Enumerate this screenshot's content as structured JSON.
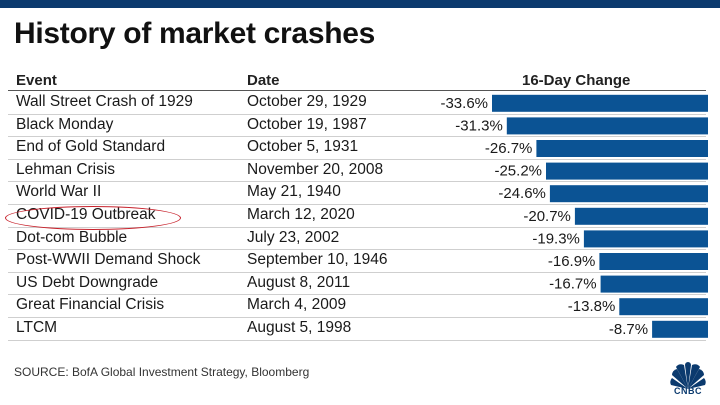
{
  "title": "History of market crashes",
  "headers": {
    "event": "Event",
    "date": "Date",
    "change": "16-Day Change"
  },
  "source": "SOURCE: BofA Global Investment Strategy, Bloomberg",
  "logo_text": "CNBC",
  "colors": {
    "bar": "#0b5394",
    "highlight": "#c7212b",
    "top_bar": "#0b3a6e"
  },
  "chart_data": {
    "type": "bar",
    "orientation": "horizontal",
    "title": "History of market crashes",
    "value_label": "16-Day Change",
    "unit": "%",
    "categories": [
      "Wall Street Crash of 1929",
      "Black Monday",
      "End of Gold Standard",
      "Lehman Crisis",
      "World War II",
      "COVID-19 Outbreak",
      "Dot-com Bubble",
      "Post-WWII Demand Shock",
      "US Debt Downgrade",
      "Great Financial Crisis",
      "LTCM"
    ],
    "dates": [
      "October 29, 1929",
      "October 19, 1987",
      "October 5, 1931",
      "November 20, 2008",
      "May 21, 1940",
      "March 12, 2020",
      "July 23, 2002",
      "September 10, 1946",
      "August 8, 2011",
      "March 4, 2009",
      "August 5, 1998"
    ],
    "values": [
      -33.6,
      -31.3,
      -26.7,
      -25.2,
      -24.6,
      -20.7,
      -19.3,
      -16.9,
      -16.7,
      -13.8,
      -8.7
    ],
    "labels": [
      "-33.6%",
      "-31.3%",
      "-26.7%",
      "-25.2%",
      "-24.6%",
      "-20.7%",
      "-19.3%",
      "-16.9%",
      "-16.7%",
      "-13.8%",
      "-8.7%"
    ],
    "highlighted": "COVID-19 Outbreak"
  }
}
